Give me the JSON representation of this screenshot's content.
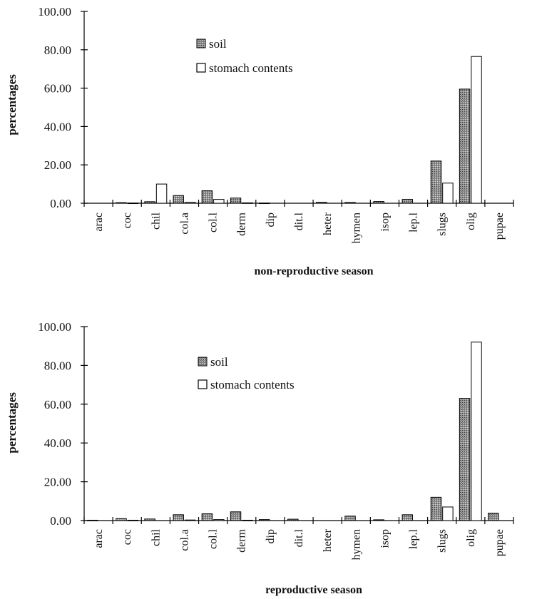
{
  "chart_data": [
    {
      "type": "bar",
      "xlabel": "non-reproductive season",
      "ylabel": "percentages",
      "ylim": [
        0,
        100
      ],
      "yticks": [
        "0.00",
        "20.00",
        "40.00",
        "60.00",
        "80.00",
        "100.00"
      ],
      "legend_position": "top-center",
      "categories": [
        "arac",
        "coc",
        "chil",
        "col.a",
        "col.l",
        "derm",
        "dip",
        "dit.l",
        "heter",
        "hymen",
        "isop",
        "lep.l",
        "slugs",
        "olig",
        "pupae"
      ],
      "series": [
        {
          "name": "soil",
          "color": "#8a8a8a",
          "values": [
            0,
            0.3,
            0.8,
            4.0,
            6.5,
            2.7,
            0.1,
            0,
            0.5,
            0.4,
            0.9,
            2.0,
            22.0,
            59.5,
            0
          ]
        },
        {
          "name": "stomach contents",
          "color": "#ffffff",
          "values": [
            0,
            0.1,
            10.0,
            0.5,
            2.0,
            0.2,
            0,
            0,
            0,
            0,
            0,
            0,
            10.5,
            76.5,
            0
          ]
        }
      ]
    },
    {
      "type": "bar",
      "xlabel": "reproductive season",
      "ylabel": "percentages",
      "ylim": [
        0,
        100
      ],
      "yticks": [
        "0.00",
        "20.00",
        "40.00",
        "60.00",
        "80.00",
        "100.00"
      ],
      "legend_position": "top-center",
      "categories": [
        "arac",
        "coc",
        "chil",
        "col.a",
        "col.l",
        "derm",
        "dip",
        "dit.l",
        "heter",
        "hymen",
        "isop",
        "lep.l",
        "slugs",
        "olig",
        "pupae"
      ],
      "series": [
        {
          "name": "soil",
          "color": "#8a8a8a",
          "values": [
            0.2,
            1.0,
            0.8,
            3.0,
            3.5,
            4.5,
            0.5,
            0.7,
            0,
            2.3,
            0.4,
            3.0,
            12.0,
            63.0,
            3.8
          ]
        },
        {
          "name": "stomach contents",
          "color": "#ffffff",
          "values": [
            0,
            0.2,
            0,
            0.3,
            0.5,
            0.2,
            0,
            0,
            0,
            0,
            0,
            0,
            7.0,
            92.0,
            0
          ]
        }
      ]
    }
  ]
}
